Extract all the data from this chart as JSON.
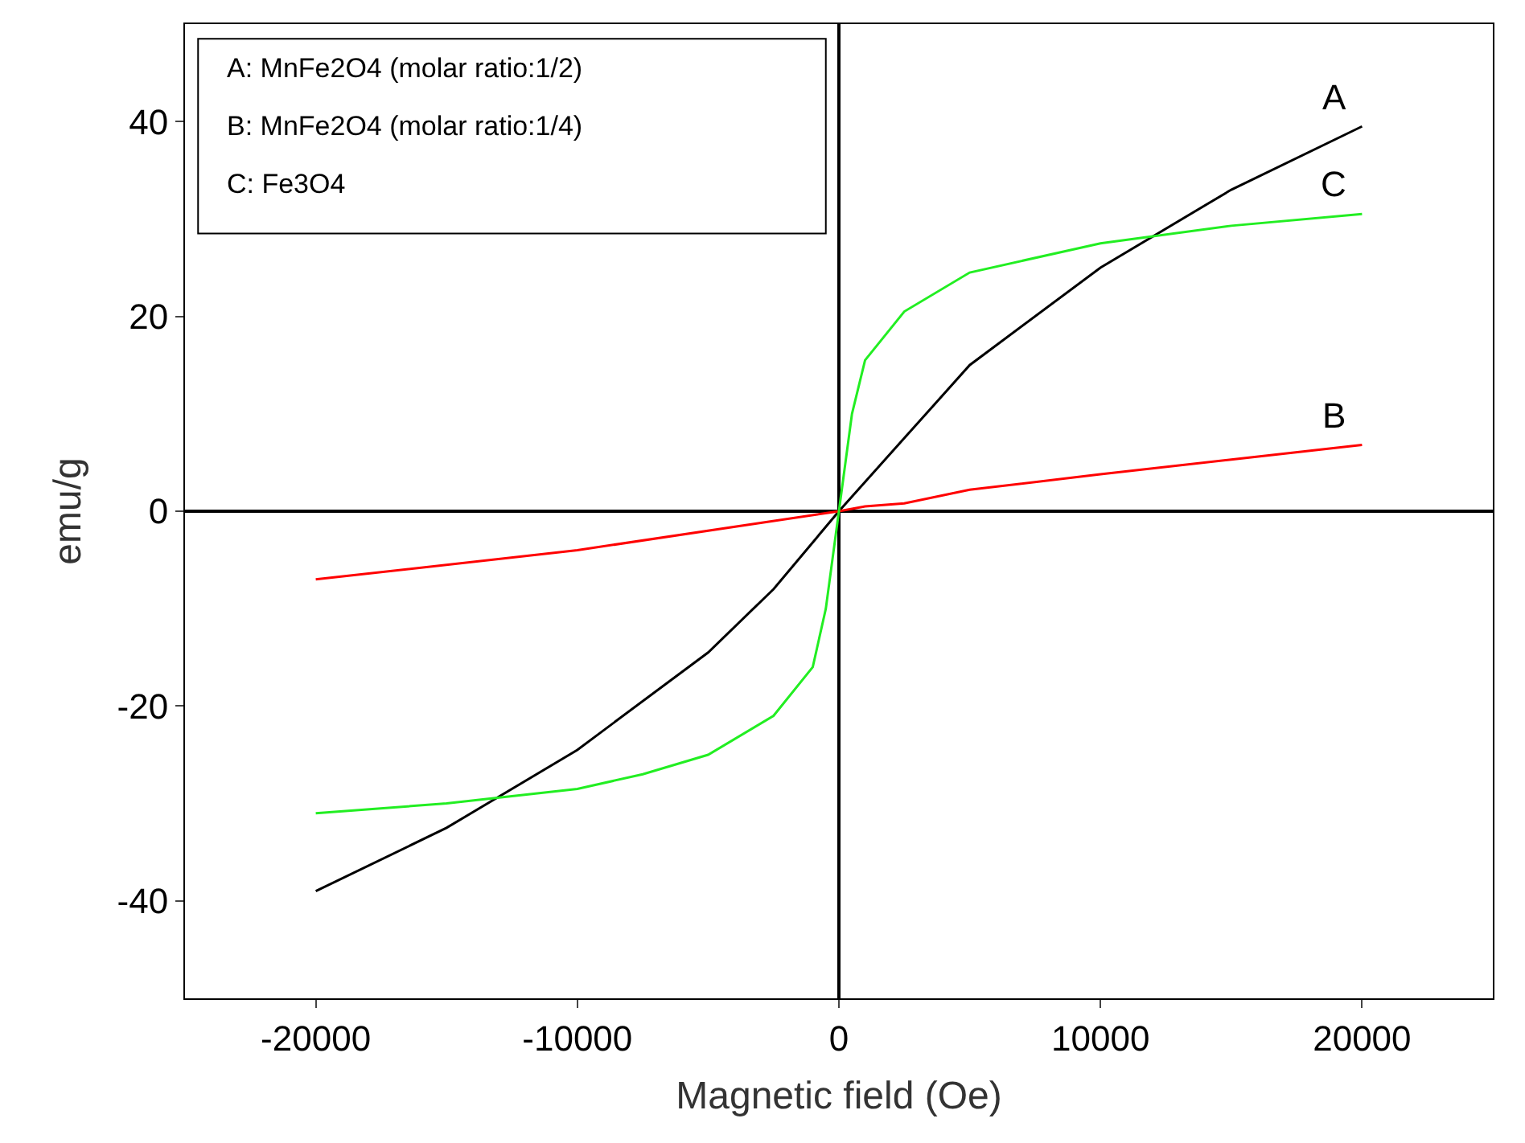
{
  "chart_data": {
    "type": "line",
    "xlabel": "Magnetic field (Oe)",
    "ylabel": "emu/g",
    "xlim": [
      -25000,
      25000
    ],
    "xticks": [
      -20000,
      -10000,
      0,
      10000,
      20000
    ],
    "ylim": [
      -50,
      50
    ],
    "yticks": [
      -40,
      -20,
      0,
      20,
      40
    ],
    "legend": false,
    "marker": "none",
    "line_style": "solid",
    "series": [
      {
        "name": "A",
        "color": "#000000",
        "x": [
          -20000,
          -15000,
          -10000,
          -5000,
          -2500,
          0,
          2500,
          5000,
          10000,
          15000,
          20000
        ],
        "values": [
          -39,
          -32.5,
          -24.5,
          -14.5,
          -8,
          0,
          7.5,
          15,
          25,
          33,
          39.5
        ]
      },
      {
        "name": "B",
        "color": "#ff0000",
        "x": [
          -20000,
          -10000,
          0,
          1000,
          2500,
          5000,
          10000,
          15000,
          20000
        ],
        "values": [
          -7,
          -4,
          0,
          0.5,
          0.8,
          2.2,
          3.8,
          5.3,
          6.8
        ]
      },
      {
        "name": "C",
        "color": "#22ee22",
        "x": [
          -20000,
          -15000,
          -10000,
          -7500,
          -5000,
          -2500,
          -1000,
          -500,
          0,
          500,
          1000,
          2500,
          5000,
          10000,
          15000,
          20000
        ],
        "values": [
          -31,
          -30,
          -28.5,
          -27,
          -25,
          -21,
          -16,
          -10,
          0,
          10,
          15.5,
          20.5,
          24.5,
          27.5,
          29.3,
          30.5
        ]
      }
    ],
    "annotations": [
      "A: MnFe2O4 (molar ratio:1/2)",
      "B: MnFe2O4 (molar ratio:1/4)",
      "C: Fe3O4"
    ]
  }
}
